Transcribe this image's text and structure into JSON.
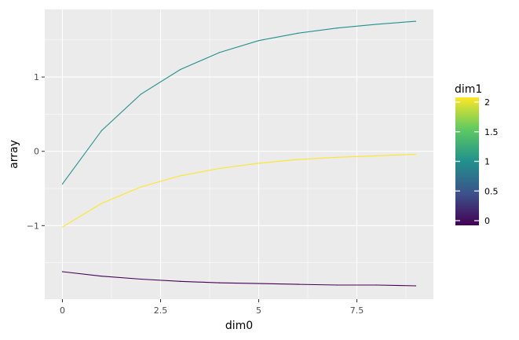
{
  "chart_data": {
    "type": "line",
    "xlabel": "dim0",
    "ylabel": "array",
    "x": [
      0,
      1,
      2,
      3,
      4,
      5,
      6,
      7,
      8,
      9
    ],
    "xlim": [
      -0.45,
      9.45
    ],
    "ylim": [
      -1.99,
      1.91
    ],
    "x_ticks": [
      {
        "value": 0,
        "label": "0"
      },
      {
        "value": 2.5,
        "label": "2.5"
      },
      {
        "value": 5,
        "label": "5"
      },
      {
        "value": 7.5,
        "label": "7.5"
      }
    ],
    "y_ticks": [
      {
        "value": -1,
        "label": "−1"
      },
      {
        "value": 0,
        "label": "0"
      },
      {
        "value": 1,
        "label": "1"
      }
    ],
    "x_minor": [
      1.25,
      3.75,
      6.25,
      8.75
    ],
    "y_minor": [
      -1.5,
      -0.5,
      0.5,
      1.5
    ],
    "grid": true,
    "panel_background": "#ebebeb",
    "series": [
      {
        "dim1": 0,
        "color": "#440154",
        "values": [
          -1.62,
          -1.68,
          -1.72,
          -1.75,
          -1.77,
          -1.78,
          -1.79,
          -1.8,
          -1.8,
          -1.81
        ]
      },
      {
        "dim1": 1,
        "color": "#21918c",
        "values": [
          -0.44,
          0.28,
          0.77,
          1.1,
          1.33,
          1.49,
          1.59,
          1.66,
          1.71,
          1.75
        ]
      },
      {
        "dim1": 2,
        "color": "#fde725",
        "values": [
          -1.02,
          -0.7,
          -0.48,
          -0.33,
          -0.23,
          -0.16,
          -0.11,
          -0.08,
          -0.06,
          -0.04
        ]
      }
    ],
    "legend": {
      "title": "dim1",
      "position": "right",
      "type": "colorbar",
      "range": [
        0,
        2
      ],
      "ticks": [
        {
          "value": 0,
          "label": "0"
        },
        {
          "value": 0.5,
          "label": "0.5"
        },
        {
          "value": 1,
          "label": "1"
        },
        {
          "value": 1.5,
          "label": "1.5"
        },
        {
          "value": 2,
          "label": "2"
        }
      ],
      "colors": [
        "#440154",
        "#3b528b",
        "#21918c",
        "#5ec962",
        "#fde725"
      ]
    }
  }
}
